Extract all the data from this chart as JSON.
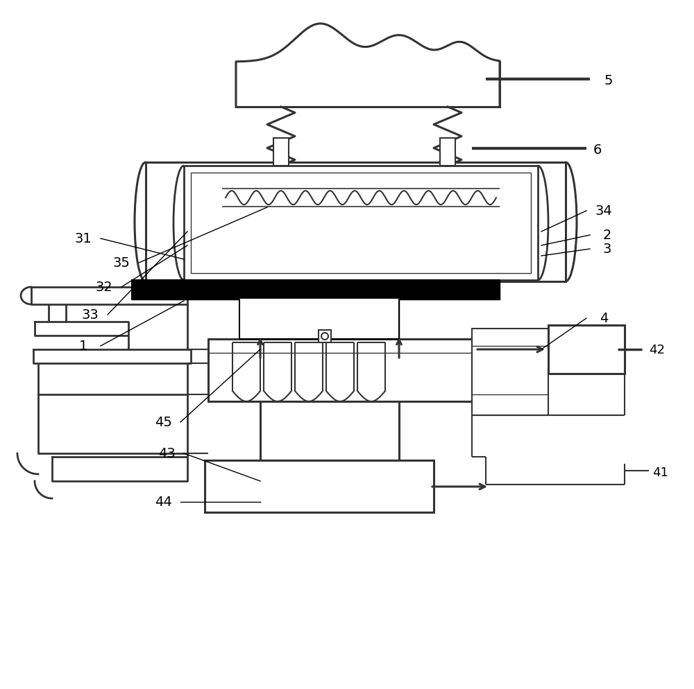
{
  "bg_color": "#ffffff",
  "line_color": "#333333",
  "fig_width": 10.0,
  "fig_height": 9.95,
  "dpi": 100
}
